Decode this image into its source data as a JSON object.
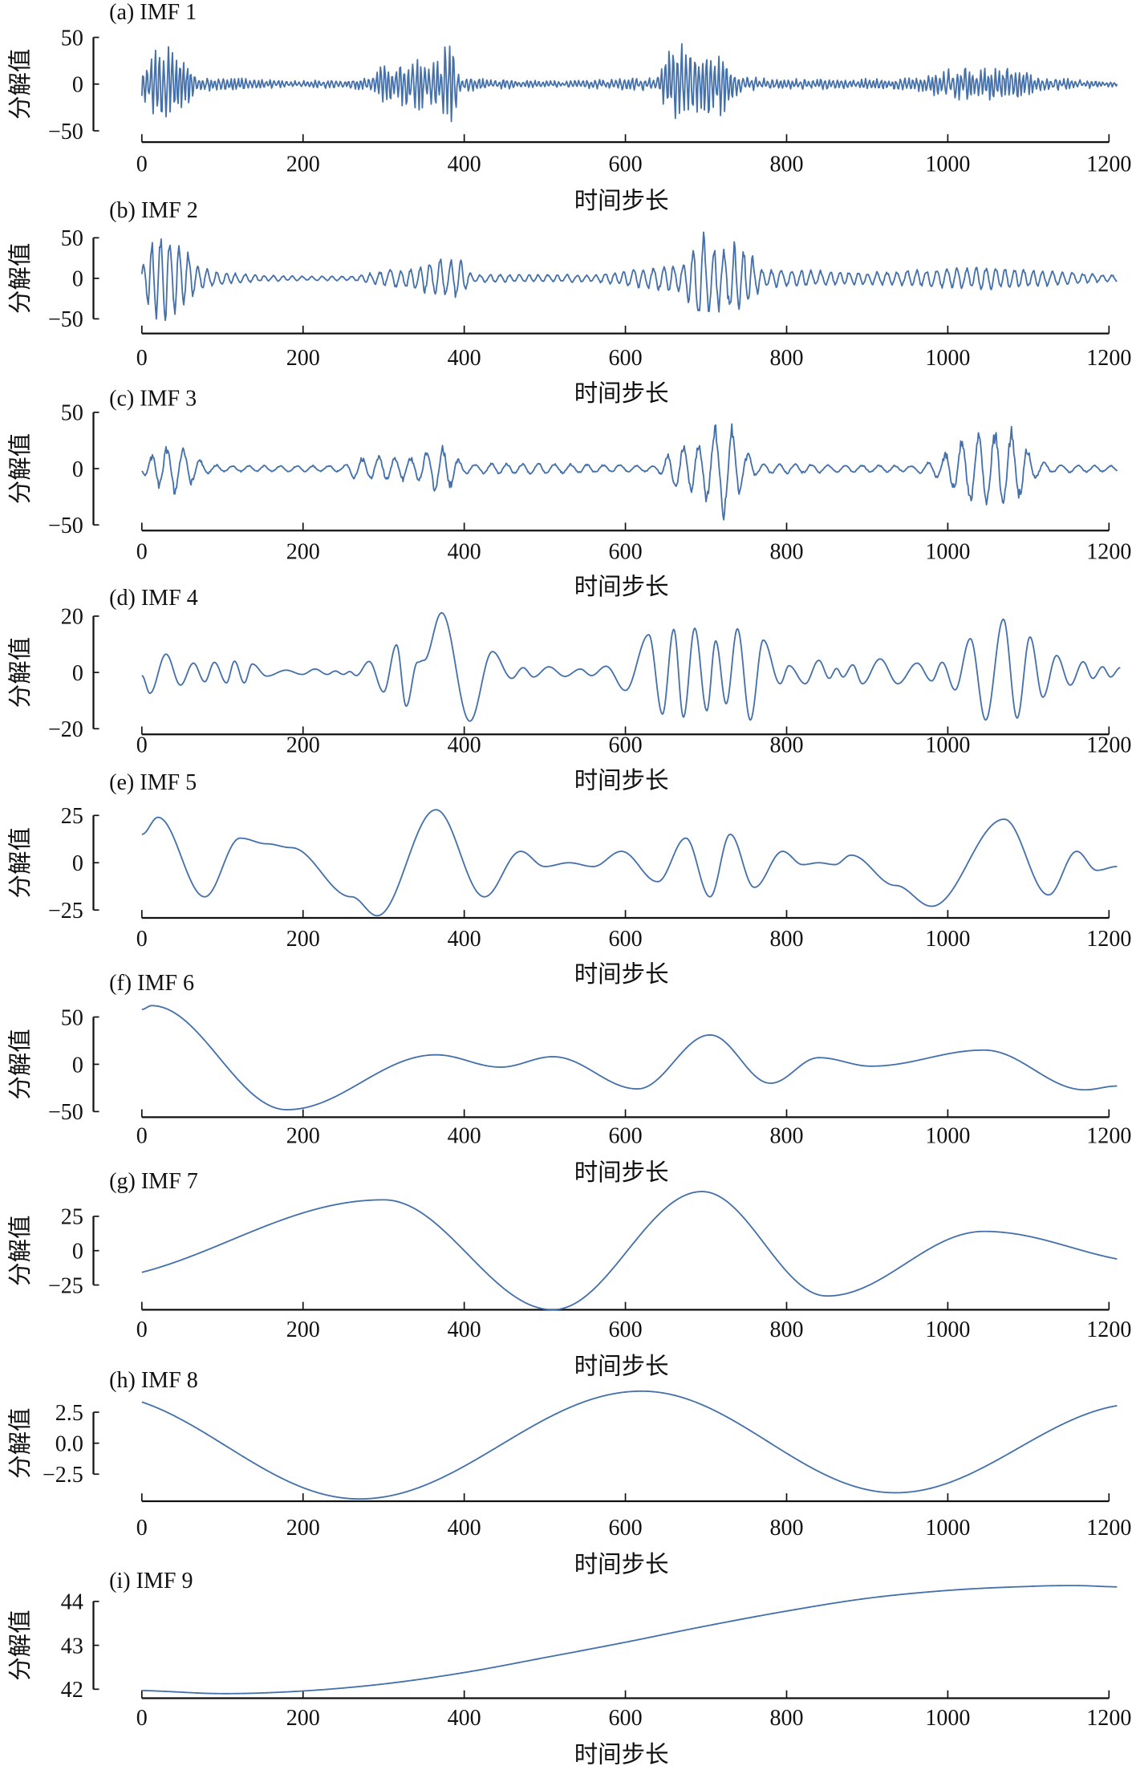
{
  "line_color": "#4470ab",
  "chart_data": [
    {
      "type": "line",
      "title": "(a) IMF 1",
      "xlabel": "时间步长",
      "ylabel": "分解值",
      "xticks": [
        0,
        200,
        400,
        600,
        800,
        1000,
        1200
      ],
      "yticks": [
        50,
        0,
        -50
      ],
      "xlim": [
        0,
        1210
      ],
      "envelope": {
        "period": 5,
        "x": [
          0,
          20,
          40,
          55,
          65,
          80,
          120,
          150,
          200,
          250,
          280,
          300,
          330,
          360,
          385,
          395,
          430,
          500,
          560,
          600,
          640,
          660,
          680,
          720,
          745,
          800,
          900,
          960,
          1000,
          1050,
          1090,
          1110,
          1150,
          1210
        ],
        "amplitude": [
          20,
          45,
          48,
          40,
          12,
          8,
          8,
          5,
          4,
          5,
          8,
          22,
          25,
          35,
          55,
          10,
          6,
          4,
          5,
          7,
          8,
          55,
          35,
          35,
          8,
          6,
          6,
          8,
          18,
          22,
          20,
          8,
          6,
          3
        ]
      }
    },
    {
      "type": "line",
      "title": "(b) IMF 2",
      "xlabel": "时间步长",
      "ylabel": "分解值",
      "xticks": [
        0,
        200,
        400,
        600,
        800,
        1000,
        1200
      ],
      "yticks": [
        50,
        0,
        -50
      ],
      "xlim": [
        0,
        1210
      ],
      "envelope": {
        "period": 12,
        "x": [
          0,
          15,
          30,
          50,
          70,
          100,
          150,
          200,
          260,
          300,
          340,
          370,
          395,
          410,
          480,
          560,
          600,
          640,
          670,
          695,
          720,
          745,
          770,
          850,
          900,
          980,
          1050,
          1100,
          1150,
          1210
        ],
        "amplitude": [
          20,
          55,
          65,
          45,
          15,
          8,
          4,
          3,
          3,
          10,
          15,
          25,
          25,
          5,
          5,
          5,
          10,
          15,
          20,
          60,
          40,
          50,
          12,
          10,
          8,
          12,
          15,
          12,
          8,
          4
        ]
      }
    },
    {
      "type": "line",
      "title": "(c) IMF 3",
      "xlabel": "时间步长",
      "ylabel": "分解值",
      "xticks": [
        0,
        200,
        400,
        600,
        800,
        1000,
        1200
      ],
      "yticks": [
        50,
        0,
        -50
      ],
      "xlim": [
        0,
        1210
      ],
      "envelope": {
        "period": 20,
        "x": [
          0,
          20,
          40,
          60,
          80,
          100,
          250,
          265,
          300,
          340,
          360,
          380,
          400,
          500,
          640,
          655,
          680,
          700,
          715,
          728,
          745,
          765,
          960,
          985,
          1005,
          1025,
          1050,
          1075,
          1092,
          1110,
          1130,
          1210
        ],
        "amplitude": [
          4,
          18,
          25,
          16,
          5,
          3,
          3,
          10,
          12,
          12,
          24,
          20,
          5,
          5,
          3,
          16,
          25,
          30,
          45,
          50,
          20,
          5,
          3,
          9,
          20,
          35,
          32,
          42,
          28,
          8,
          4,
          3
        ]
      }
    },
    {
      "type": "line",
      "title": "(d) IMF 4",
      "xlabel": "时间步长",
      "ylabel": "分解值",
      "xticks": [
        0,
        200,
        400,
        600,
        800,
        1000,
        1200
      ],
      "yticks": [
        20,
        0,
        -20
      ],
      "xlim": [
        0,
        1214
      ],
      "extrema": [
        [
          0,
          -1.1
        ],
        [
          10,
          -7.4
        ],
        [
          30,
          6.5
        ],
        [
          48,
          -4.5
        ],
        [
          64,
          3.3
        ],
        [
          78,
          -3.3
        ],
        [
          90,
          3.6
        ],
        [
          105,
          -3.7
        ],
        [
          115,
          4
        ],
        [
          127,
          -3.7
        ],
        [
          137,
          3
        ],
        [
          155,
          -1.3
        ],
        [
          179,
          0.8
        ],
        [
          199,
          -0.7
        ],
        [
          215,
          1.2
        ],
        [
          230,
          -0.7
        ],
        [
          240,
          0.5
        ],
        [
          250,
          -0.7
        ],
        [
          258,
          0.3
        ],
        [
          266,
          -1.1
        ],
        [
          282,
          3.9
        ],
        [
          300,
          -6.9
        ],
        [
          316,
          9.8
        ],
        [
          328,
          -12
        ],
        [
          342,
          3.6
        ],
        [
          350,
          4.3
        ],
        [
          372,
          21.2
        ],
        [
          407,
          -17.3
        ],
        [
          435,
          7.4
        ],
        [
          459,
          -2.1
        ],
        [
          473,
          1.7
        ],
        [
          486,
          -1.6
        ],
        [
          505,
          2
        ],
        [
          525,
          -1.4
        ],
        [
          544,
          1.2
        ],
        [
          558,
          -1.1
        ],
        [
          576,
          2.2
        ],
        [
          600,
          -6.4
        ],
        [
          629,
          13.4
        ],
        [
          646,
          -14.8
        ],
        [
          660,
          15.3
        ],
        [
          672,
          -15.9
        ],
        [
          686,
          15.7
        ],
        [
          701,
          -13.6
        ],
        [
          712,
          11.2
        ],
        [
          725,
          -11.1
        ],
        [
          739,
          15.5
        ],
        [
          755,
          -16.9
        ],
        [
          771,
          11.5
        ],
        [
          792,
          -4
        ],
        [
          803,
          2.4
        ],
        [
          823,
          -4
        ],
        [
          840,
          4.3
        ],
        [
          853,
          -2.1
        ],
        [
          862,
          1.4
        ],
        [
          870,
          -1.6
        ],
        [
          882,
          2.7
        ],
        [
          894,
          -4
        ],
        [
          916,
          4.8
        ],
        [
          938,
          -4
        ],
        [
          962,
          3.3
        ],
        [
          980,
          -3
        ],
        [
          993,
          3.6
        ],
        [
          1009,
          -6.2
        ],
        [
          1028,
          12
        ],
        [
          1047,
          -16.9
        ],
        [
          1069,
          18.9
        ],
        [
          1086,
          -16.2
        ],
        [
          1102,
          12.6
        ],
        [
          1118,
          -8.8
        ],
        [
          1135,
          6
        ],
        [
          1152,
          -4.5
        ],
        [
          1168,
          3.8
        ],
        [
          1180,
          -2.1
        ],
        [
          1192,
          2
        ],
        [
          1202,
          -1.6
        ],
        [
          1214,
          1.7
        ]
      ]
    },
    {
      "type": "line",
      "title": "(e) IMF 5",
      "xlabel": "时间步长",
      "ylabel": "分解值",
      "xticks": [
        0,
        200,
        400,
        600,
        800,
        1000,
        1200
      ],
      "yticks": [
        25,
        0,
        -25
      ],
      "xlim": [
        0,
        1210
      ],
      "extrema": [
        [
          0,
          15
        ],
        [
          20,
          24
        ],
        [
          78,
          -18
        ],
        [
          122,
          13
        ],
        [
          155,
          10
        ],
        [
          185,
          8
        ],
        [
          260,
          -18
        ],
        [
          292,
          -28
        ],
        [
          365,
          28
        ],
        [
          425,
          -18
        ],
        [
          470,
          6
        ],
        [
          500,
          -2
        ],
        [
          530,
          0
        ],
        [
          560,
          -2
        ],
        [
          595,
          6
        ],
        [
          640,
          -10
        ],
        [
          675,
          13
        ],
        [
          705,
          -18
        ],
        [
          730,
          15
        ],
        [
          760,
          -13
        ],
        [
          795,
          6
        ],
        [
          820,
          -1
        ],
        [
          840,
          0
        ],
        [
          860,
          -1
        ],
        [
          880,
          4
        ],
        [
          935,
          -12
        ],
        [
          980,
          -23
        ],
        [
          1070,
          23
        ],
        [
          1125,
          -17
        ],
        [
          1160,
          6
        ],
        [
          1185,
          -4
        ],
        [
          1210,
          -2
        ]
      ]
    },
    {
      "type": "line",
      "title": "(f) IMF 6",
      "xlabel": "时间步长",
      "ylabel": "分解值",
      "xticks": [
        0,
        200,
        400,
        600,
        800,
        1000,
        1200
      ],
      "yticks": [
        50,
        0,
        -50
      ],
      "xlim": [
        0,
        1210
      ],
      "extrema": [
        [
          0,
          58
        ],
        [
          12,
          62
        ],
        [
          180,
          -48
        ],
        [
          365,
          10
        ],
        [
          445,
          -3
        ],
        [
          510,
          8
        ],
        [
          615,
          -26
        ],
        [
          705,
          31
        ],
        [
          780,
          -20
        ],
        [
          840,
          7
        ],
        [
          905,
          -2
        ],
        [
          1045,
          15
        ],
        [
          1170,
          -27
        ],
        [
          1210,
          -23
        ]
      ]
    },
    {
      "type": "line",
      "title": "(g) IMF 7",
      "xlabel": "时间步长",
      "ylabel": "分解值",
      "xticks": [
        0,
        200,
        400,
        600,
        800,
        1000,
        1200
      ],
      "yticks": [
        25,
        0,
        -25
      ],
      "xlim": [
        0,
        1210
      ],
      "extrema": [
        [
          -80,
          -22
        ],
        [
          300,
          37
        ],
        [
          510,
          -43
        ],
        [
          695,
          43
        ],
        [
          850,
          -33
        ],
        [
          1045,
          14
        ],
        [
          1260,
          -9
        ]
      ]
    },
    {
      "type": "line",
      "title": "(h) IMF 8",
      "xlabel": "时间步长",
      "ylabel": "分解值",
      "xticks": [
        0,
        200,
        400,
        600,
        800,
        1000,
        1200
      ],
      "yticks": [
        2.5,
        0.0,
        -2.5
      ],
      "ytick_labels": [
        "2.5",
        "0.0",
        "−2.5"
      ],
      "xlim": [
        0,
        1210
      ],
      "extrema": [
        [
          -60,
          4.0
        ],
        [
          270,
          -4.5
        ],
        [
          620,
          4.2
        ],
        [
          935,
          -4.0
        ],
        [
          1240,
          3.2
        ]
      ]
    },
    {
      "type": "line",
      "title": "(i) IMF 9",
      "xlabel": "时间步长",
      "ylabel": "分解值",
      "xticks": [
        0,
        200,
        400,
        600,
        800,
        1000,
        1200
      ],
      "yticks": [
        44,
        43,
        42
      ],
      "xlim": [
        0,
        1210
      ],
      "points": [
        [
          0,
          41.97
        ],
        [
          100,
          41.9
        ],
        [
          200,
          41.96
        ],
        [
          300,
          42.12
        ],
        [
          400,
          42.38
        ],
        [
          500,
          42.72
        ],
        [
          600,
          43.07
        ],
        [
          700,
          43.44
        ],
        [
          800,
          43.78
        ],
        [
          900,
          44.07
        ],
        [
          1000,
          44.25
        ],
        [
          1100,
          44.34
        ],
        [
          1160,
          44.36
        ],
        [
          1210,
          44.33
        ]
      ]
    }
  ]
}
